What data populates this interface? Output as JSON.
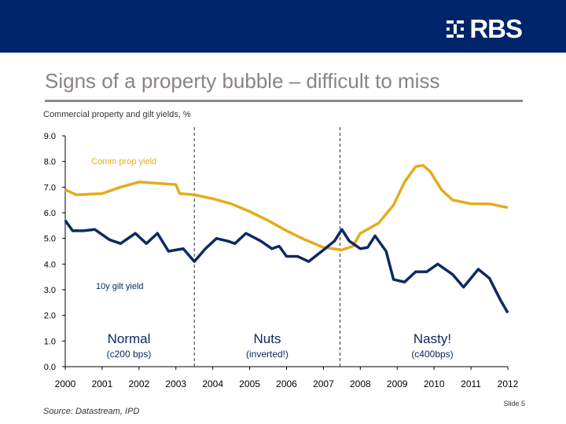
{
  "header": {
    "logo_text": "RBS"
  },
  "title": "Signs of a property bubble – difficult to miss",
  "subtitle": "Commercial property and gilt yields, %",
  "source": "Source: Datastream, IPD",
  "slide_label": "Slide 5",
  "colors": {
    "banner": "#002469",
    "property": "#E3AC1C",
    "gilt": "#0C2A62",
    "title": "#8a8288"
  },
  "chart_data": {
    "type": "line",
    "title": "",
    "xlim": [
      2000,
      2012
    ],
    "ylim": [
      0,
      9
    ],
    "x_ticks": [
      "2000",
      "2001",
      "2002",
      "2003",
      "2004",
      "2005",
      "2006",
      "2007",
      "2008",
      "2009",
      "2010",
      "2011",
      "2012"
    ],
    "y_ticks": [
      "0.0",
      "1.0",
      "2.0",
      "3.0",
      "4.0",
      "5.0",
      "6.0",
      "7.0",
      "8.0",
      "9.0"
    ],
    "grid": false,
    "dividers": [
      2003.5,
      2007.45
    ],
    "series": [
      {
        "name": "Comm prop yield",
        "color": "#E3AC1C",
        "x": [
          2000,
          2000.3,
          2001,
          2001.5,
          2002,
          2002.5,
          2003,
          2003.1,
          2003.5,
          2004,
          2004.5,
          2005,
          2005.5,
          2006,
          2006.5,
          2007,
          2007.5,
          2007.8,
          2008,
          2008.5,
          2008.9,
          2009.2,
          2009.5,
          2009.7,
          2009.9,
          2010.2,
          2010.5,
          2011,
          2011.5,
          2012
        ],
        "y": [
          6.9,
          6.7,
          6.75,
          7.0,
          7.2,
          7.15,
          7.1,
          6.75,
          6.7,
          6.55,
          6.35,
          6.05,
          5.7,
          5.3,
          4.95,
          4.65,
          4.55,
          4.7,
          5.2,
          5.6,
          6.3,
          7.2,
          7.8,
          7.85,
          7.6,
          6.9,
          6.5,
          6.35,
          6.35,
          6.2
        ]
      },
      {
        "name": "10y gilt yield",
        "color": "#0C2A62",
        "x": [
          2000,
          2000.2,
          2000.5,
          2000.8,
          2001.2,
          2001.5,
          2001.9,
          2002.2,
          2002.5,
          2002.8,
          2003.2,
          2003.5,
          2003.8,
          2004.1,
          2004.4,
          2004.6,
          2004.9,
          2005.3,
          2005.6,
          2005.8,
          2006,
          2006.3,
          2006.6,
          2007,
          2007.3,
          2007.5,
          2007.7,
          2008,
          2008.2,
          2008.4,
          2008.7,
          2008.9,
          2009.2,
          2009.5,
          2009.8,
          2010.1,
          2010.5,
          2010.8,
          2011.2,
          2011.5,
          2011.8,
          2012
        ],
        "y": [
          5.7,
          5.3,
          5.3,
          5.35,
          4.95,
          4.8,
          5.2,
          4.8,
          5.2,
          4.5,
          4.6,
          4.1,
          4.6,
          5.0,
          4.9,
          4.8,
          5.2,
          4.9,
          4.6,
          4.7,
          4.3,
          4.3,
          4.1,
          4.55,
          4.9,
          5.35,
          4.9,
          4.6,
          4.65,
          5.1,
          4.5,
          3.4,
          3.3,
          3.7,
          3.7,
          4.0,
          3.6,
          3.1,
          3.8,
          3.45,
          2.6,
          2.1
        ]
      }
    ],
    "annotations": [
      {
        "label": "Normal",
        "sub": "(c200 bps)"
      },
      {
        "label": "Nuts",
        "sub": "(inverted!)"
      },
      {
        "label": "Nasty!",
        "sub": "(c400bps)"
      }
    ]
  }
}
